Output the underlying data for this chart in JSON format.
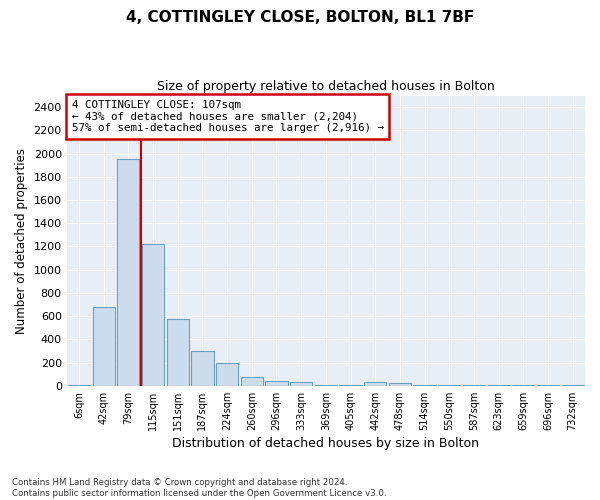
{
  "title_line1": "4, COTTINGLEY CLOSE, BOLTON, BL1 7BF",
  "title_line2": "Size of property relative to detached houses in Bolton",
  "xlabel": "Distribution of detached houses by size in Bolton",
  "ylabel": "Number of detached properties",
  "footnote": "Contains HM Land Registry data © Crown copyright and database right 2024.\nContains public sector information licensed under the Open Government Licence v3.0.",
  "categories": [
    "6sqm",
    "42sqm",
    "79sqm",
    "115sqm",
    "151sqm",
    "187sqm",
    "224sqm",
    "260sqm",
    "296sqm",
    "333sqm",
    "369sqm",
    "405sqm",
    "442sqm",
    "478sqm",
    "514sqm",
    "550sqm",
    "587sqm",
    "623sqm",
    "659sqm",
    "696sqm",
    "732sqm"
  ],
  "values": [
    10,
    680,
    1950,
    1220,
    575,
    300,
    195,
    75,
    40,
    30,
    5,
    5,
    30,
    20,
    5,
    5,
    5,
    5,
    5,
    5,
    5
  ],
  "bar_color": "#ccdcec",
  "bar_edge_color": "#6a9fbe",
  "background_color": "#e8eef5",
  "grid_color": "#ffffff",
  "fig_background": "#ffffff",
  "red_line_x": 2.5,
  "annotation_text": "4 COTTINGLEY CLOSE: 107sqm\n← 43% of detached houses are smaller (2,204)\n57% of semi-detached houses are larger (2,916) →",
  "annotation_box_color": "#ffffff",
  "annotation_box_edge": "#cc0000",
  "ylim": [
    0,
    2500
  ],
  "yticks": [
    0,
    200,
    400,
    600,
    800,
    1000,
    1200,
    1400,
    1600,
    1800,
    2000,
    2200,
    2400
  ]
}
